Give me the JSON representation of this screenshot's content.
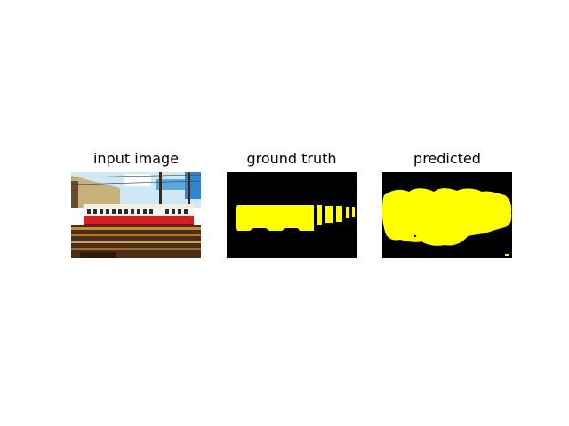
{
  "figure": {
    "panels": [
      {
        "title": "input image",
        "content": "photo-of-red-and-cream-tram"
      },
      {
        "title": "ground truth",
        "content": "binary-segmentation-mask"
      },
      {
        "title": "predicted",
        "content": "binary-segmentation-mask"
      }
    ],
    "colors": {
      "mask_foreground": "#ffff00",
      "mask_background": "#000000",
      "tram_red": "#d42020",
      "tram_cream": "#f2eee0",
      "sky": "#a8d8f0",
      "ground": "#4a2e18"
    }
  }
}
